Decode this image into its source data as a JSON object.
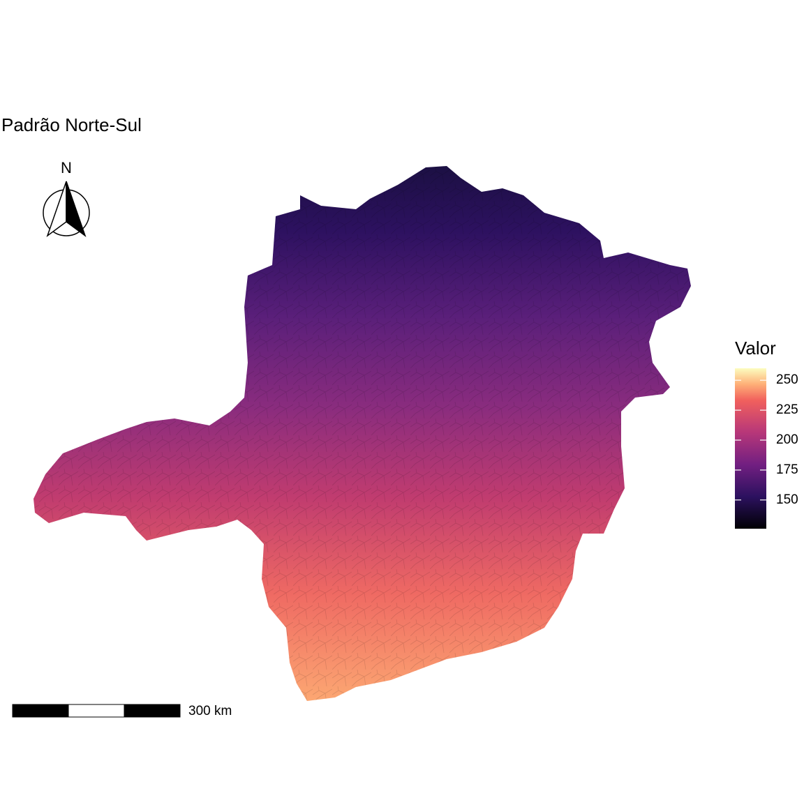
{
  "title": "Padrão Norte-Sul",
  "north_arrow": {
    "label": "N"
  },
  "legend": {
    "title": "Valor",
    "limits": [
      126,
      260
    ],
    "ticks": [
      150,
      175,
      200,
      225,
      250
    ]
  },
  "scale_bar": {
    "label": "300 km"
  }
}
